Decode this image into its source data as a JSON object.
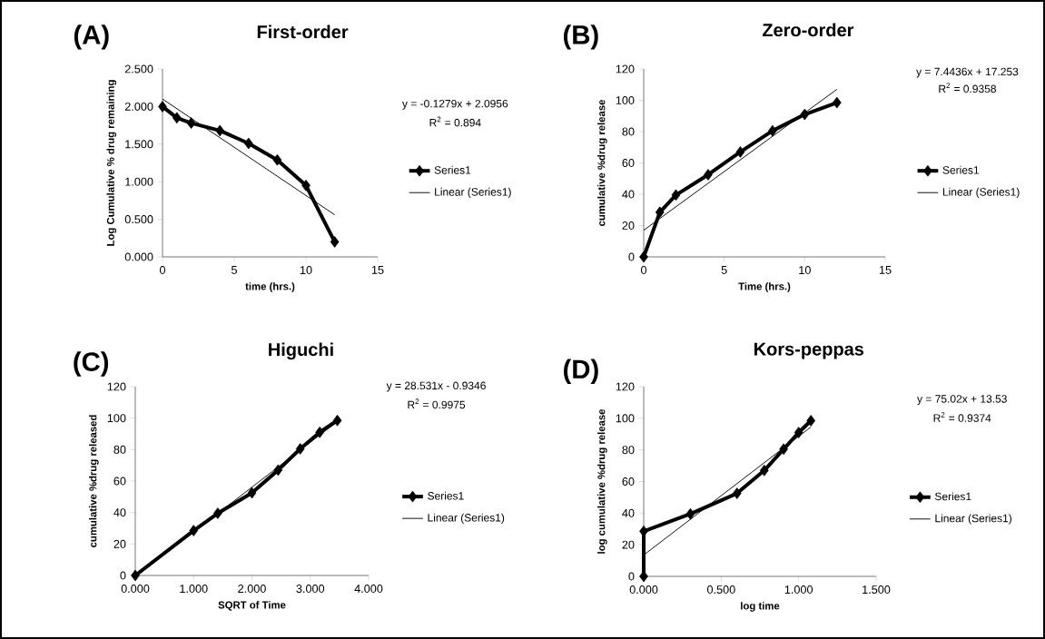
{
  "chart_data": [
    {
      "type": "line",
      "title": "First-order",
      "xlabel": "time (hrs.)",
      "ylabel": "Log Cumulative % drug remaining",
      "annotations": [
        "(A)",
        "y = -0.1279x + 2.0956",
        "R$^{2}$ = 0.894"
      ],
      "legend": "right",
      "series": [
        {
          "name": "Series1",
          "color": "#000000",
          "marker": "diamond",
          "x": [
            0,
            1,
            2,
            4,
            6,
            8,
            10,
            12
          ],
          "values": [
            2.0,
            1.85,
            1.78,
            1.68,
            1.51,
            1.29,
            0.95,
            0.2
          ]
        },
        {
          "name": "Linear (Series1)",
          "color": "#000000",
          "marker": "none",
          "x": [
            0,
            12
          ],
          "values": [
            2.1,
            0.56
          ]
        }
      ],
      "xlim": [
        0,
        15
      ],
      "xticks": [
        0,
        5,
        10,
        15
      ],
      "ylim": [
        0,
        2.5
      ],
      "yticks": [
        {
          "value": 0,
          "label": "0.000"
        },
        {
          "value": 0.5,
          "label": "0.500"
        },
        {
          "value": 1.0,
          "label": "1.000"
        },
        {
          "value": 1.5,
          "label": "1.500"
        },
        {
          "value": 2.0,
          "label": "2.000"
        },
        {
          "value": 2.5,
          "label": "2.500"
        }
      ]
    },
    {
      "type": "line",
      "title": "Zero-order",
      "xlabel": "Time (hrs.)",
      "ylabel": "cumulative %drug release",
      "annotations": [
        "(B)",
        "y = 7.4436x + 17.253",
        "R$^{2}$ = 0.9358"
      ],
      "legend": "right",
      "series": [
        {
          "name": "Series1",
          "color": "#000000",
          "marker": "diamond",
          "x": [
            0,
            1,
            2,
            4,
            6,
            8,
            10,
            12
          ],
          "values": [
            0,
            28.5,
            39.5,
            52.5,
            67,
            80.5,
            91,
            98.5
          ]
        },
        {
          "name": "Linear (Series1)",
          "color": "#000000",
          "marker": "none",
          "x": [
            0,
            12
          ],
          "values": [
            17,
            107
          ]
        }
      ],
      "xlim": [
        0,
        15
      ],
      "xticks": [
        0,
        5,
        10,
        15
      ],
      "ylim": [
        0,
        120
      ],
      "yticks": [
        0,
        20,
        40,
        60,
        80,
        100,
        120
      ]
    },
    {
      "type": "line",
      "title": "Higuchi",
      "xlabel": "SQRT of Time",
      "ylabel": "cumulative %drug released",
      "annotations": [
        "(C)",
        "y = 28.531x - 0.9346",
        "R$^{2}$ = 0.9975"
      ],
      "legend": "right",
      "series": [
        {
          "name": "Series1",
          "color": "#000000",
          "marker": "diamond",
          "x": [
            0,
            1.0,
            1.414,
            2.0,
            2.449,
            2.828,
            3.162,
            3.464
          ],
          "values": [
            0,
            28.5,
            39.5,
            52.5,
            67,
            80.5,
            91,
            98.5
          ]
        },
        {
          "name": "Linear (Series1)",
          "color": "#000000",
          "marker": "none",
          "x": [
            0.1,
            3.464
          ],
          "values": [
            1.9,
            97.9
          ]
        }
      ],
      "xlim": [
        0,
        4
      ],
      "xticks": [
        {
          "value": 0,
          "label": "0.000"
        },
        {
          "value": 1,
          "label": "1.000"
        },
        {
          "value": 2,
          "label": "2.000"
        },
        {
          "value": 3,
          "label": "3.000"
        },
        {
          "value": 4,
          "label": "4.000"
        }
      ],
      "ylim": [
        0,
        120
      ],
      "yticks": [
        0,
        20,
        40,
        60,
        80,
        100,
        120
      ]
    },
    {
      "type": "line",
      "title": "Kors-peppas",
      "xlabel": "log time",
      "ylabel": "log cumulative %drug release",
      "annotations": [
        "(D)",
        "y = 75.02x + 13.53",
        "R$^{2}$ = 0.9374"
      ],
      "legend": "right",
      "series": [
        {
          "name": "Series1",
          "color": "#000000",
          "marker": "diamond",
          "x": [
            0,
            0,
            0.301,
            0.602,
            0.778,
            0.903,
            1.0,
            1.079
          ],
          "values": [
            0,
            28.5,
            39.5,
            52.5,
            67,
            80.5,
            91,
            98.5
          ]
        },
        {
          "name": "Linear (Series1)",
          "color": "#000000",
          "marker": "none",
          "x": [
            0,
            1.079
          ],
          "values": [
            13.5,
            94.5
          ]
        }
      ],
      "xlim": [
        0,
        1.5
      ],
      "xticks": [
        {
          "value": 0,
          "label": "0.000"
        },
        {
          "value": 0.5,
          "label": "0.500"
        },
        {
          "value": 1.0,
          "label": "1.000"
        },
        {
          "value": 1.5,
          "label": "1.500"
        }
      ],
      "ylim": [
        0,
        120
      ],
      "yticks": [
        0,
        20,
        40,
        60,
        80,
        100,
        120
      ]
    }
  ]
}
